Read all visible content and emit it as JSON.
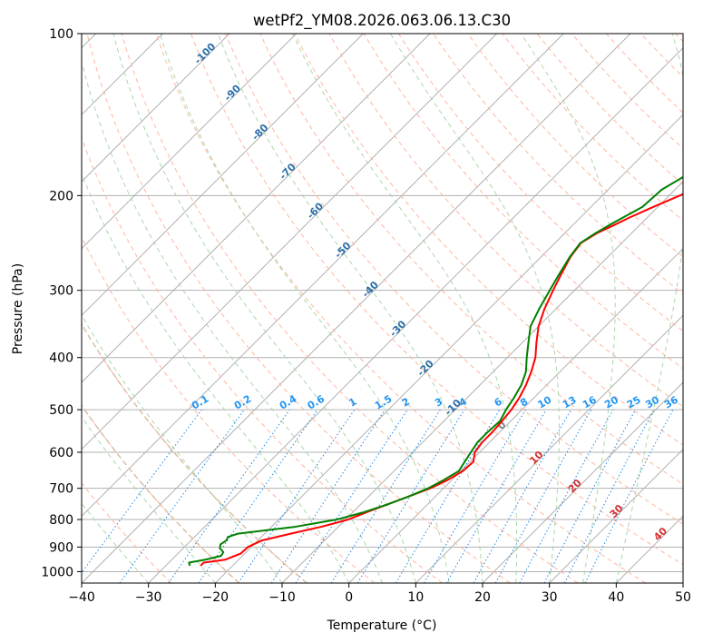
{
  "chart_data": {
    "type": "line",
    "title": "wetPf2_YM08.2026.063.06.13.C30",
    "xlabel": "Temperature (°C)",
    "ylabel": "Pressure (hPa)",
    "xlim": [
      -40,
      50
    ],
    "ylim": [
      1050,
      100
    ],
    "y_scale": "log",
    "grid": true,
    "x_ticks": [
      -40,
      -30,
      -20,
      -10,
      0,
      10,
      20,
      30,
      40,
      50
    ],
    "y_ticks": [
      100,
      200,
      300,
      400,
      500,
      600,
      700,
      800,
      900,
      1000
    ],
    "series": [
      {
        "color": "#ff0000",
        "pressure": [
          975,
          962,
          950,
          925,
          900,
          875,
          850,
          825,
          800,
          775,
          750,
          725,
          700,
          675,
          650,
          625,
          600,
          575,
          550,
          525,
          500,
          475,
          450,
          425,
          400,
          375,
          350,
          325,
          300,
          280,
          260,
          245,
          235,
          228,
          220,
          210,
          200,
          190,
          180,
          170,
          160,
          150,
          140,
          130,
          120,
          110,
          100
        ],
        "temperature": [
          -24.8,
          -24.8,
          -22.0,
          -20.6,
          -20.5,
          -19.4,
          -16.1,
          -12.5,
          -9.6,
          -7.9,
          -6.0,
          -4.0,
          -2.0,
          -0.6,
          0.3,
          0.5,
          -0.7,
          -1.1,
          -1.1,
          -1.3,
          -1.6,
          -2.2,
          -3.1,
          -4.3,
          -5.8,
          -7.9,
          -10.0,
          -11.7,
          -13.2,
          -14.4,
          -15.6,
          -16.1,
          -15.2,
          -14.0,
          -12.7,
          -10.7,
          -8.4,
          -6.5,
          -4.5,
          -2.8,
          -1.2,
          0.8,
          2.8,
          4.8,
          6.9,
          8.2,
          9.6
        ]
      },
      {
        "color": "#008000",
        "pressure": [
          975,
          962,
          950,
          935,
          920,
          905,
          890,
          875,
          862,
          850,
          825,
          800,
          775,
          750,
          725,
          700,
          675,
          650,
          625,
          600,
          575,
          550,
          525,
          500,
          475,
          450,
          425,
          400,
          375,
          350,
          325,
          300,
          280,
          260,
          245,
          235,
          225,
          210,
          195,
          185,
          175,
          165,
          160,
          150,
          140,
          130,
          120,
          110,
          100
        ],
        "temperature": [
          -26.4,
          -27.0,
          -25.0,
          -23.2,
          -23.4,
          -24.5,
          -25.0,
          -24.7,
          -25.0,
          -24.0,
          -16.4,
          -11.3,
          -8.3,
          -6.0,
          -4.0,
          -2.3,
          -1.2,
          -0.3,
          -0.8,
          -1.3,
          -1.8,
          -1.8,
          -1.6,
          -2.4,
          -3.0,
          -3.8,
          -5.1,
          -7.1,
          -9.1,
          -11.2,
          -12.5,
          -13.7,
          -14.7,
          -15.7,
          -16.2,
          -15.4,
          -14.3,
          -12.3,
          -12.0,
          -10.7,
          -10.2,
          -10.2,
          -10.8,
          -10.3,
          -9.0,
          -8.0,
          -6.3,
          -4.5,
          -1.9
        ]
      }
    ],
    "mixing_ratio_labels": [
      "0.1",
      "0.2",
      "0.4",
      "0.6",
      "1",
      "1.5",
      "2",
      "3",
      "4",
      "6",
      "8",
      "10",
      "13",
      "16",
      "20",
      "25",
      "30",
      "36"
    ],
    "mixing_ratio_values": [
      0.1,
      0.2,
      0.4,
      0.6,
      1,
      1.5,
      2,
      3,
      4,
      6,
      8,
      10,
      13,
      16,
      20,
      25,
      30,
      36
    ],
    "moist_adiabat_labels": [
      "0",
      "10",
      "20",
      "30",
      "40"
    ],
    "dry_adiabat_labels": [
      "-100",
      "-90",
      "-80",
      "-70",
      "-60",
      "-50",
      "-40",
      "-30",
      "-20",
      "-10"
    ],
    "colors": {
      "isotherm": "#b0b0b0",
      "dry_adiabat": "#ffb6a0",
      "moist_adiabat": "#a8d8a8",
      "mixing_ratio": "#1e88e5",
      "mixing_ratio_label": "#2196f3",
      "dry_adiabat_label": "#2c6fa8",
      "moist_adiabat_label": "#d32f2f",
      "moist_zero_label": "#808080",
      "dry_adiabat_curve": "#d8c0a8"
    }
  }
}
